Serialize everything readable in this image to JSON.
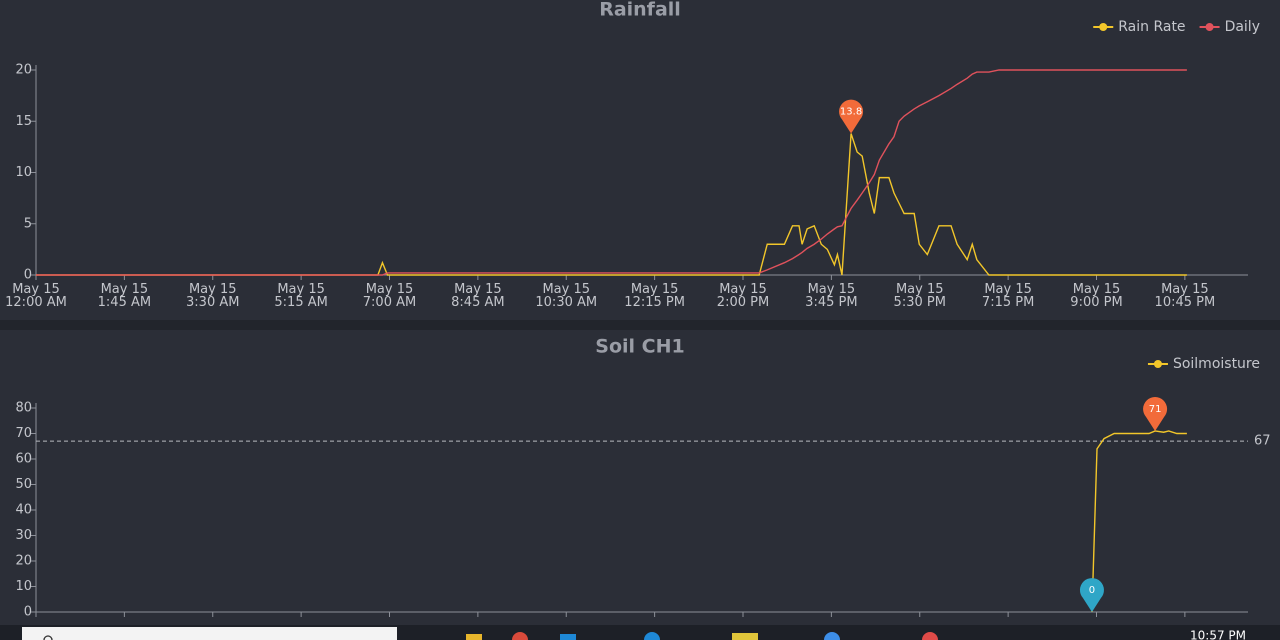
{
  "chart_data": [
    {
      "type": "line",
      "title": "Rainfall",
      "x": [
        0,
        6.77,
        6.86,
        6.96,
        14.32,
        14.48,
        14.82,
        14.98,
        15.11,
        15.17,
        15.27,
        15.41,
        15.55,
        15.67,
        15.81,
        15.87,
        15.96,
        16.14,
        16.26,
        16.36,
        16.5,
        16.6,
        16.7,
        16.89,
        16.99,
        17.09,
        17.19,
        17.39,
        17.49,
        17.65,
        17.88,
        18.12,
        18.24,
        18.44,
        18.54,
        18.63,
        18.87,
        19.07,
        22.79
      ],
      "series": [
        {
          "name": "Rain Rate",
          "color": "#f2c62a",
          "mark_points": [
            "max"
          ],
          "values": [
            0,
            0,
            1.2,
            0,
            0,
            3,
            3,
            4.8,
            4.8,
            3,
            4.5,
            4.8,
            3,
            2.5,
            1,
            2,
            0,
            13.8,
            12,
            11.6,
            8,
            6,
            9.5,
            9.5,
            8,
            7,
            6,
            6,
            3,
            2,
            4.8,
            4.8,
            3,
            1.5,
            3,
            1.5,
            0,
            0,
            0
          ]
        },
        {
          "name": "Daily",
          "color": "#e0525c",
          "values": [
            0,
            0,
            0,
            0.2,
            0.2,
            0.5,
            1.2,
            1.6,
            2,
            2.2,
            2.6,
            3,
            3.5,
            4,
            4.5,
            4.7,
            4.8,
            6.5,
            7.3,
            8,
            9,
            9.8,
            11.2,
            12.8,
            13.5,
            15,
            15.5,
            16.2,
            16.5,
            16.9,
            17.5,
            18.2,
            18.6,
            19.2,
            19.6,
            19.8,
            19.8,
            20,
            20
          ]
        }
      ],
      "mark_point_colors": {
        "max": "#f26b3a",
        "min": "#2fa6c7"
      },
      "xlim": [
        0,
        24
      ],
      "xticks": [
        {
          "value": 0,
          "label": "May 15\n12:00 AM"
        },
        {
          "value": 1.75,
          "label": "May 15\n1:45 AM"
        },
        {
          "value": 3.5,
          "label": "May 15\n3:30 AM"
        },
        {
          "value": 5.25,
          "label": "May 15\n5:15 AM"
        },
        {
          "value": 7,
          "label": "May 15\n7:00 AM"
        },
        {
          "value": 8.75,
          "label": "May 15\n8:45 AM"
        },
        {
          "value": 10.5,
          "label": "May 15\n10:30 AM"
        },
        {
          "value": 12.25,
          "label": "May 15\n12:15 PM"
        },
        {
          "value": 14,
          "label": "May 15\n2:00 PM"
        },
        {
          "value": 15.75,
          "label": "May 15\n3:45 PM"
        },
        {
          "value": 17.5,
          "label": "May 15\n5:30 PM"
        },
        {
          "value": 19.25,
          "label": "May 15\n7:15 PM"
        },
        {
          "value": 21,
          "label": "May 15\n9:00 PM"
        },
        {
          "value": 22.75,
          "label": "May 15\n10:45 PM"
        }
      ],
      "ylim": [
        0,
        20
      ],
      "yticks": [
        0,
        5,
        10,
        15,
        20
      ],
      "legend": "top-right"
    },
    {
      "type": "line",
      "title": "Soil CH1",
      "x": [
        20.91,
        21.01,
        21.15,
        21.35,
        22.04,
        22.16,
        22.33,
        22.43,
        22.59,
        22.79
      ],
      "series": [
        {
          "name": "Soilmoisture",
          "color": "#f2c62a",
          "mark_points": [
            "max",
            "min"
          ],
          "values": [
            0,
            64,
            68,
            70,
            70,
            71,
            70.5,
            71,
            70,
            70
          ]
        }
      ],
      "mark_point_colors": {
        "max": "#f26b3a",
        "min": "#2fa6c7"
      },
      "average_line": 67,
      "xlim": [
        0,
        24
      ],
      "xticks": [
        0,
        1.75,
        3.5,
        5.25,
        7,
        8.75,
        10.5,
        12.25,
        14,
        15.75,
        17.5,
        19.25,
        21,
        22.75
      ],
      "ylim": [
        0,
        80
      ],
      "yticks": [
        0,
        10,
        20,
        30,
        40,
        50,
        60,
        70,
        80
      ],
      "legend": "top-right"
    }
  ],
  "taskbar": {
    "time": "10:57 PM"
  }
}
